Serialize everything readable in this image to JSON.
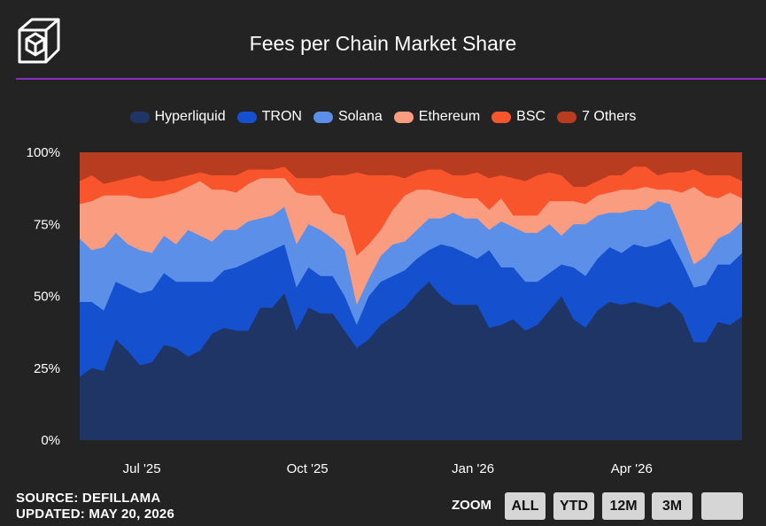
{
  "header": {
    "title": "Fees per Chain Market Share",
    "logo_icon": "cube-logo-icon"
  },
  "footer": {
    "source": "SOURCE: DEFILLAMA",
    "updated": "UPDATED: MAY 20, 2026",
    "zoom_label": "ZOOM",
    "zoom_buttons": [
      "ALL",
      "YTD",
      "12M",
      "3M",
      ""
    ]
  },
  "colors": {
    "background": "#232323",
    "divider": "#8a2bc2",
    "Hyperliquid": "#1e3566",
    "TRON": "#1550cf",
    "Solana": "#5b8fe8",
    "Ethereum": "#fa9c80",
    "BSC": "#f9552c",
    "7 Others": "#b83c20"
  },
  "chart_data": {
    "type": "area",
    "stacked": "percent",
    "title": "Fees per Chain Market Share",
    "legend_position": "top-center",
    "grid": false,
    "ylim": [
      0,
      100
    ],
    "y_ticks": [
      "0%",
      "25%",
      "50%",
      "75%",
      "100%"
    ],
    "x_ticks": [
      {
        "label": "Jul '25",
        "x": 9
      },
      {
        "label": "Oct '25",
        "x": 33
      },
      {
        "label": "Jan '26",
        "x": 57
      },
      {
        "label": "Apr '26",
        "x": 80
      }
    ],
    "x_range": [
      0,
      96
    ],
    "series": [
      {
        "name": "Hyperliquid",
        "values": [
          22,
          25,
          24,
          35,
          31,
          26,
          27,
          33,
          32,
          29,
          31,
          37,
          39,
          38,
          38,
          46,
          46,
          51,
          38,
          46,
          44,
          44,
          38,
          32,
          35,
          40,
          43,
          46,
          51,
          55,
          50,
          47,
          47,
          47,
          39,
          40,
          42,
          38,
          40,
          45,
          50,
          42,
          39,
          45,
          48,
          47,
          48,
          47,
          46,
          48,
          44,
          34,
          34,
          41,
          40,
          43
        ]
      },
      {
        "name": "TRON",
        "values": [
          48,
          48,
          45,
          55,
          53,
          51,
          52,
          58,
          55,
          55,
          55,
          55,
          59,
          60,
          62,
          64,
          66,
          68,
          53,
          60,
          57,
          57,
          50,
          40,
          50,
          55,
          57,
          59,
          63,
          66,
          68,
          67,
          65,
          63,
          66,
          60,
          60,
          55,
          55,
          58,
          61,
          60,
          57,
          63,
          67,
          65,
          68,
          67,
          68,
          70,
          62,
          53,
          54,
          61,
          61,
          65
        ]
      },
      {
        "name": "Solana",
        "values": [
          70,
          66,
          67,
          72,
          68,
          66,
          65,
          71,
          68,
          73,
          71,
          69,
          73,
          73,
          76,
          77,
          78,
          81,
          68,
          75,
          73,
          70,
          66,
          47,
          56,
          64,
          68,
          69,
          73,
          77,
          77,
          79,
          77,
          77,
          73,
          76,
          74,
          72,
          72,
          75,
          71,
          75,
          75,
          78,
          79,
          79,
          80,
          80,
          83,
          82,
          72,
          61,
          64,
          70,
          72,
          76
        ]
      },
      {
        "name": "Ethereum",
        "values": [
          82,
          83,
          85,
          85,
          85,
          84,
          84,
          85,
          86,
          88,
          90,
          87,
          87,
          86,
          89,
          91,
          91,
          91,
          86,
          85,
          85,
          79,
          78,
          64,
          68,
          73,
          80,
          85,
          87,
          87,
          86,
          85,
          84,
          84,
          80,
          84,
          78,
          78,
          78,
          83,
          83,
          83,
          82,
          85,
          86,
          87,
          87,
          88,
          87,
          87,
          86,
          88,
          85,
          84,
          86,
          84
        ]
      },
      {
        "name": "BSC",
        "values": [
          90,
          92,
          89,
          90,
          91,
          92,
          90,
          90,
          91,
          92,
          93,
          92,
          92,
          92,
          94,
          94,
          94,
          95,
          91,
          91,
          91,
          92,
          92,
          93,
          92,
          92,
          92,
          91,
          93,
          94,
          94,
          92,
          92,
          93,
          91,
          92,
          91,
          90,
          92,
          93,
          92,
          88,
          88,
          90,
          92,
          92,
          95,
          95,
          92,
          93,
          93,
          94,
          92,
          92,
          92,
          90
        ]
      },
      {
        "name": "7 Others",
        "values": [
          100,
          100,
          100,
          100,
          100,
          100,
          100,
          100,
          100,
          100,
          100,
          100,
          100,
          100,
          100,
          100,
          100,
          100,
          100,
          100,
          100,
          100,
          100,
          100,
          100,
          100,
          100,
          100,
          100,
          100,
          100,
          100,
          100,
          100,
          100,
          100,
          100,
          100,
          100,
          100,
          100,
          100,
          100,
          100,
          100,
          100,
          100,
          100,
          100,
          100,
          100,
          100,
          100,
          100,
          100,
          100
        ]
      }
    ]
  }
}
